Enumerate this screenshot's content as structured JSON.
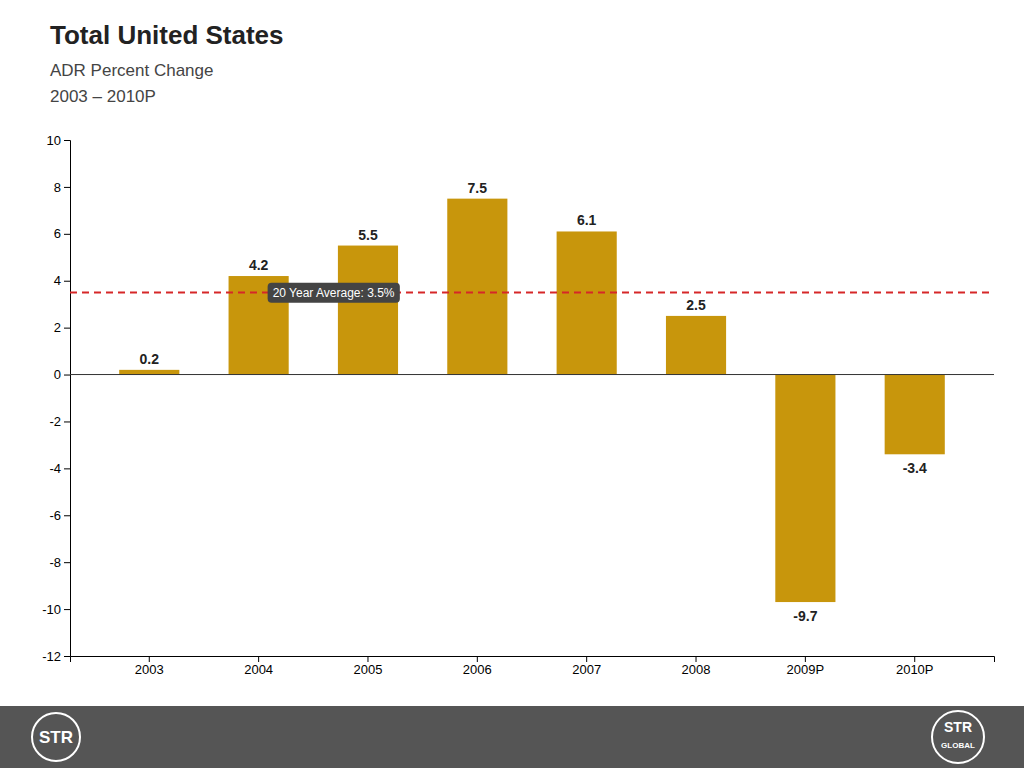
{
  "chart_data": {
    "type": "bar",
    "title": "Total United States",
    "subtitle": [
      "ADR Percent Change",
      "2003 – 2010P"
    ],
    "categories": [
      "2003",
      "2004",
      "2005",
      "2006",
      "2007",
      "2008",
      "2009P",
      "2010P"
    ],
    "values": [
      0.2,
      4.2,
      5.5,
      7.5,
      6.1,
      2.5,
      -9.7,
      -3.4
    ],
    "color": "#C8960C",
    "data_labels": true,
    "reference_line": {
      "value": 3.5,
      "label": "20 Year Average: 3.5%"
    },
    "ylim": [
      -12,
      10
    ],
    "yticks": [
      -12,
      -10,
      -8,
      -6,
      -4,
      -2,
      0,
      2,
      4,
      6,
      8,
      10
    ],
    "grid": false,
    "footer": [
      "STR",
      "STR",
      "GLOBAL"
    ]
  }
}
